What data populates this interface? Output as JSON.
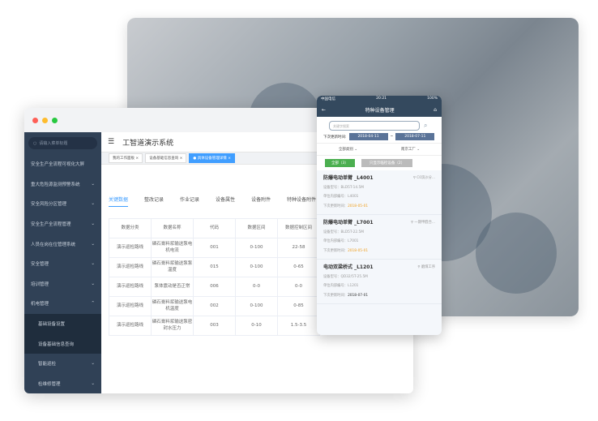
{
  "window": {
    "dots": [
      "#fe5f57",
      "#febc2e",
      "#28c840"
    ]
  },
  "sidebar": {
    "search_placeholder": "请输入菜单标题",
    "items": [
      {
        "label": "安全生产全流程可视化大屏",
        "chev": ""
      },
      {
        "label": "重大危险源监测预警系统",
        "chev": "⌄"
      },
      {
        "label": "安全风险分区管理",
        "chev": "⌄"
      },
      {
        "label": "安全生产全流程管理",
        "chev": "⌄"
      },
      {
        "label": "人员在岗在位管理系统",
        "chev": "⌄"
      },
      {
        "label": "安全管理",
        "chev": "⌄"
      },
      {
        "label": "培训管理",
        "chev": "⌄"
      },
      {
        "label": "机电管理",
        "chev": "⌃"
      }
    ],
    "sub_items": [
      "基础设备设置",
      "设备基础信息查询"
    ],
    "sub2_items": [
      "智能巡检",
      "检维修管理"
    ]
  },
  "header": {
    "title": "工智道演示系统"
  },
  "tags": [
    "我的工作面板",
    "设备基础信息查询",
    "具体设备管理详情"
  ],
  "tabs": [
    "关键数据",
    "整改记录",
    "作业记录",
    "设备属性",
    "设备附件",
    "特种设备附件"
  ],
  "table": {
    "headers": [
      "数据分类",
      "数据名称",
      "代码",
      "数据区间",
      "数据控制区间"
    ],
    "rows": [
      [
        "演示巡检路线",
        "磷石膏料浆输送泵电机电流",
        "001",
        "0-100",
        "22-58"
      ],
      [
        "演示巡检路线",
        "磷石膏料浆输送泵泵温度",
        "015",
        "0-100",
        "0-65"
      ],
      [
        "演示巡检路线",
        "泵体震动是否正常",
        "006",
        "0-0",
        "0-0"
      ],
      [
        "演示巡检路线",
        "磷石膏料浆输送泵电机温度",
        "002",
        "0-100",
        "0-85"
      ],
      [
        "演示巡检路线",
        "磷石膏料浆输送泵密封水压力",
        "003",
        "0-10",
        "1.5-3.5"
      ]
    ]
  },
  "phone": {
    "carrier": "中国电信",
    "time": "20:21",
    "battery": "100%",
    "title": "特种设备管理",
    "search_placeholder": "关键字搜索",
    "date_label": "下次更新时间:",
    "date_from": "2018-04-11",
    "date_sep": "~",
    "date_to": "2018-07-11",
    "filter1": "全部类别",
    "filter2": "南京工厂",
    "btn_all": "全部（3）",
    "btn_due": "只显示临检设备（2）",
    "cards": [
      {
        "name": "防爆电动单臂 _L4001",
        "loc": "C0滨沙分...",
        "model": "设备型号：BLD5T-14.5M",
        "code": "单位内部编号：L4001",
        "next_label": "下次更新时间：",
        "next": "2018-05-01",
        "due": true
      },
      {
        "name": "防爆电动单臂 _L7001",
        "loc": "一期甲醛合...",
        "model": "设备型号：BLD5T-22.5M",
        "code": "单位内部编号：L7001",
        "next_label": "下次更新时间：",
        "next": "2018-05-01",
        "due": true
      },
      {
        "name": "电动双梁桥式 _L1201",
        "loc": "磨煤工序",
        "model": "设备型号：QD32/5T-25.5M",
        "code": "单位内部编号：L1201",
        "next_label": "下次更新时间：",
        "next": "2018-07-01",
        "due": false
      }
    ]
  }
}
